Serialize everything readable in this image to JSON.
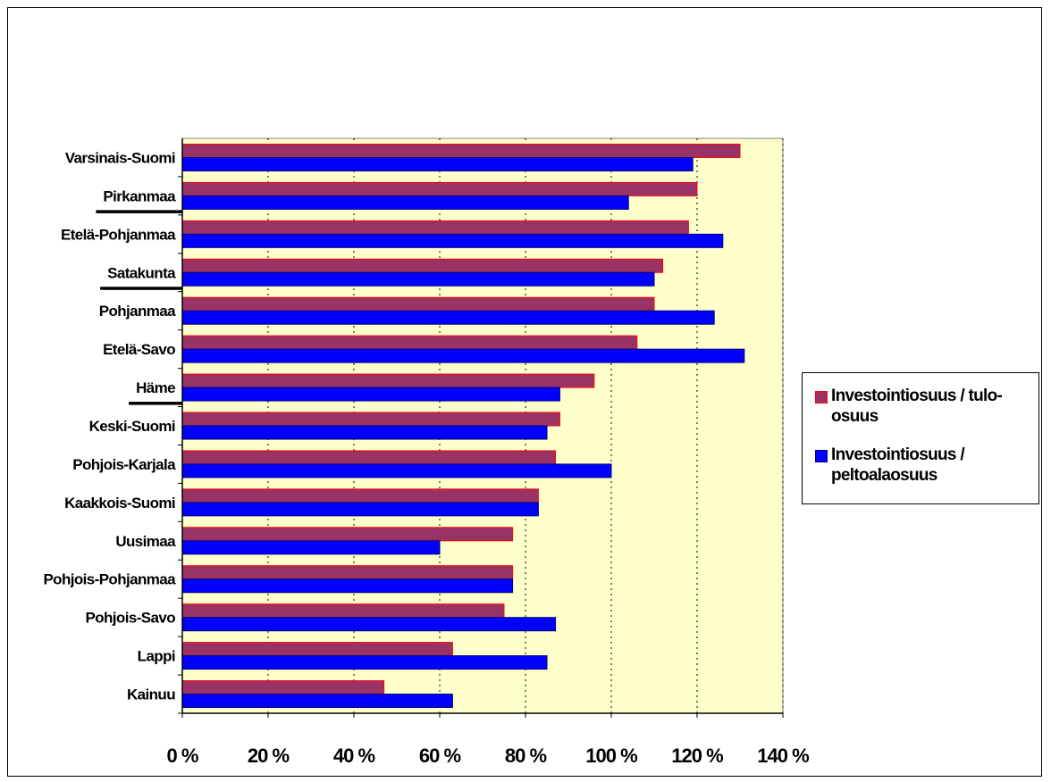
{
  "colors": {
    "plot_background": "#ffffcc",
    "series1_fill": "#993366",
    "series1_edge": "#ff0000",
    "series2_fill": "#0000ff",
    "series2_edge": "#000080"
  },
  "chart_data": {
    "type": "bar",
    "orientation": "horizontal",
    "categories": [
      "Varsinais-Suomi",
      "Pirkanmaa",
      "Etelä-Pohjanmaa",
      "Satakunta",
      "Pohjanmaa",
      "Etelä-Savo",
      "Häme",
      "Keski-Suomi",
      "Pohjois-Karjala",
      "Kaakkois-Suomi",
      "Uusimaa",
      "Pohjois-Pohjanmaa",
      "Pohjois-Savo",
      "Lappi",
      "Kainuu"
    ],
    "underlined_categories": [
      "Pirkanmaa",
      "Satakunta",
      "Häme"
    ],
    "series": [
      {
        "name": "Investointiosuus / tulo-osuus",
        "legend_text": "Investointiosuus / tulo-\nosuus",
        "values": [
          130,
          120,
          118,
          112,
          110,
          106,
          96,
          88,
          87,
          83,
          77,
          77,
          75,
          63,
          47
        ]
      },
      {
        "name": "Investointiosuus / peltoalaosuus",
        "legend_text": "Investointiosuus /\npeltoalaosuus",
        "values": [
          119,
          104,
          126,
          110,
          124,
          131,
          88,
          85,
          100,
          83,
          60,
          77,
          87,
          85,
          63
        ]
      }
    ],
    "xlim": [
      0,
      140
    ],
    "xticks": [
      0,
      20,
      40,
      60,
      80,
      100,
      120,
      140
    ],
    "xtick_labels": [
      "0 %",
      "20 %",
      "40 %",
      "60 %",
      "80 %",
      "100 %",
      "120 %",
      "140 %"
    ],
    "title": "",
    "xlabel": "",
    "ylabel": "",
    "grid": "vertical dashed",
    "legend_position": "right"
  }
}
